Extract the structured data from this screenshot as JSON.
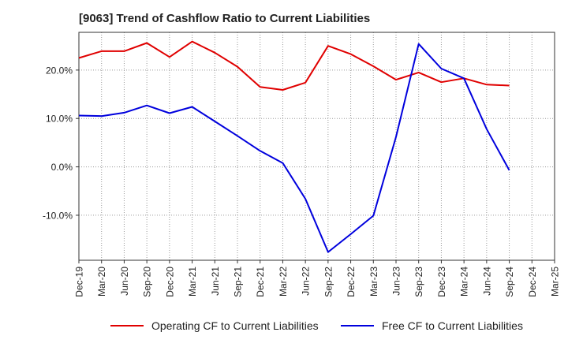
{
  "chart_data": {
    "type": "line",
    "title": "[9063]  Trend of Cashflow Ratio to Current Liabilities",
    "xlabel": "",
    "ylabel": "",
    "x": [
      "Dec-19",
      "Mar-20",
      "Jun-20",
      "Sep-20",
      "Dec-20",
      "Mar-21",
      "Jun-21",
      "Sep-21",
      "Dec-21",
      "Mar-22",
      "Jun-22",
      "Sep-22",
      "Dec-22",
      "Mar-23",
      "Jun-23",
      "Sep-23",
      "Dec-23",
      "Mar-24",
      "Jun-24",
      "Sep-24",
      "Dec-24",
      "Mar-25"
    ],
    "y_ticks": [
      20,
      10,
      0,
      -10
    ],
    "y_tick_labels": [
      "20.0%",
      "10.0%",
      "0.0%",
      "-10.0%"
    ],
    "ylim": [
      -19.3,
      27.8
    ],
    "grid": true,
    "legend_position": "bottom",
    "series": [
      {
        "name": "Operating CF to Current Liabilities",
        "color": "#e00000",
        "values": [
          22.5,
          23.9,
          23.9,
          25.6,
          22.7,
          25.9,
          23.6,
          20.7,
          16.5,
          15.9,
          17.4,
          25.0,
          23.3,
          20.8,
          18.0,
          19.5,
          17.5,
          18.3,
          17.0,
          16.8,
          null,
          null
        ]
      },
      {
        "name": "Free CF to Current Liabilities",
        "color": "#0000dd",
        "values": [
          10.6,
          10.5,
          11.2,
          12.7,
          11.1,
          12.4,
          9.4,
          6.4,
          3.3,
          0.8,
          -6.6,
          -17.6,
          -13.9,
          -10.1,
          6.2,
          25.4,
          20.3,
          18.3,
          7.8,
          -0.7,
          null,
          null
        ]
      }
    ]
  }
}
